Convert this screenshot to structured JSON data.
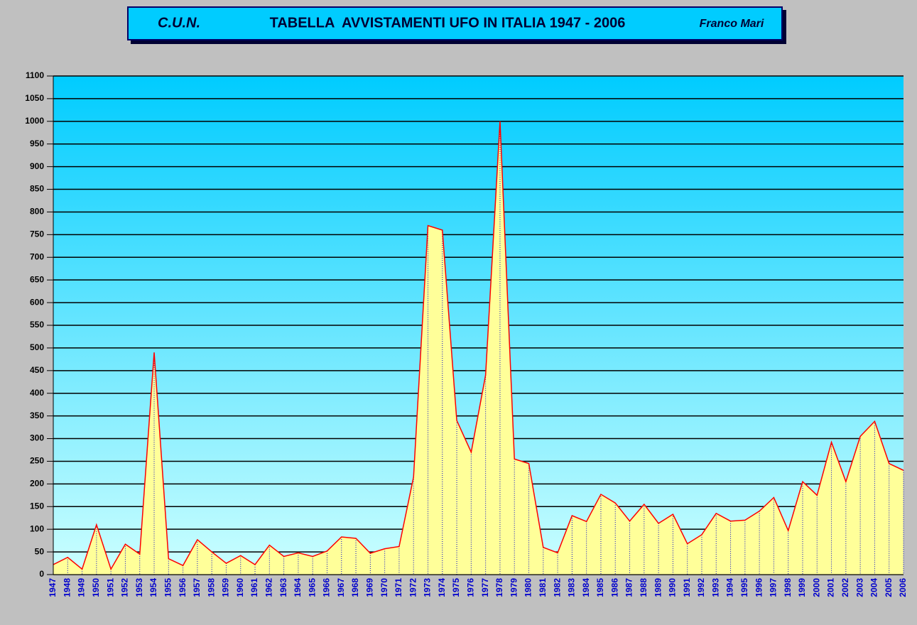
{
  "chart_data": {
    "type": "area",
    "title": "TABELLA  AVVISTAMENTI UFO IN ITALIA 1947 - 2006",
    "annotations": [
      "C.U.N.",
      "Franco Mari"
    ],
    "categories": [
      "1947",
      "1948",
      "1949",
      "1950",
      "1951",
      "1952",
      "1953",
      "1954",
      "1955",
      "1956",
      "1957",
      "1958",
      "1959",
      "1960",
      "1961",
      "1962",
      "1963",
      "1964",
      "1965",
      "1966",
      "1967",
      "1968",
      "1969",
      "1970",
      "1971",
      "1972",
      "1973",
      "1974",
      "1975",
      "1976",
      "1977",
      "1978",
      "1979",
      "1980",
      "1981",
      "1982",
      "1983",
      "1984",
      "1985",
      "1986",
      "1987",
      "1988",
      "1989",
      "1990",
      "1991",
      "1992",
      "1993",
      "1994",
      "1995",
      "1996",
      "1997",
      "1998",
      "1999",
      "2000",
      "2001",
      "2002",
      "2003",
      "2004",
      "2005",
      "2006"
    ],
    "values": [
      22,
      38,
      12,
      110,
      12,
      67,
      45,
      490,
      35,
      20,
      77,
      50,
      25,
      42,
      22,
      65,
      40,
      48,
      40,
      52,
      83,
      80,
      47,
      57,
      62,
      215,
      770,
      760,
      340,
      270,
      440,
      1000,
      255,
      245,
      60,
      48,
      130,
      117,
      177,
      158,
      118,
      155,
      113,
      133,
      68,
      88,
      135,
      118,
      120,
      140,
      170,
      97,
      205,
      175,
      292,
      205,
      305,
      338,
      245,
      230
    ],
    "color": "#ff0000",
    "fill_color": "#ffff99",
    "drop_line_color": "#0000cc",
    "ylim": [
      0,
      1100
    ],
    "yticks": [
      0,
      50,
      100,
      150,
      200,
      250,
      300,
      350,
      400,
      450,
      500,
      550,
      600,
      650,
      700,
      750,
      800,
      850,
      900,
      950,
      1000,
      1050,
      1100
    ],
    "grid": true
  }
}
